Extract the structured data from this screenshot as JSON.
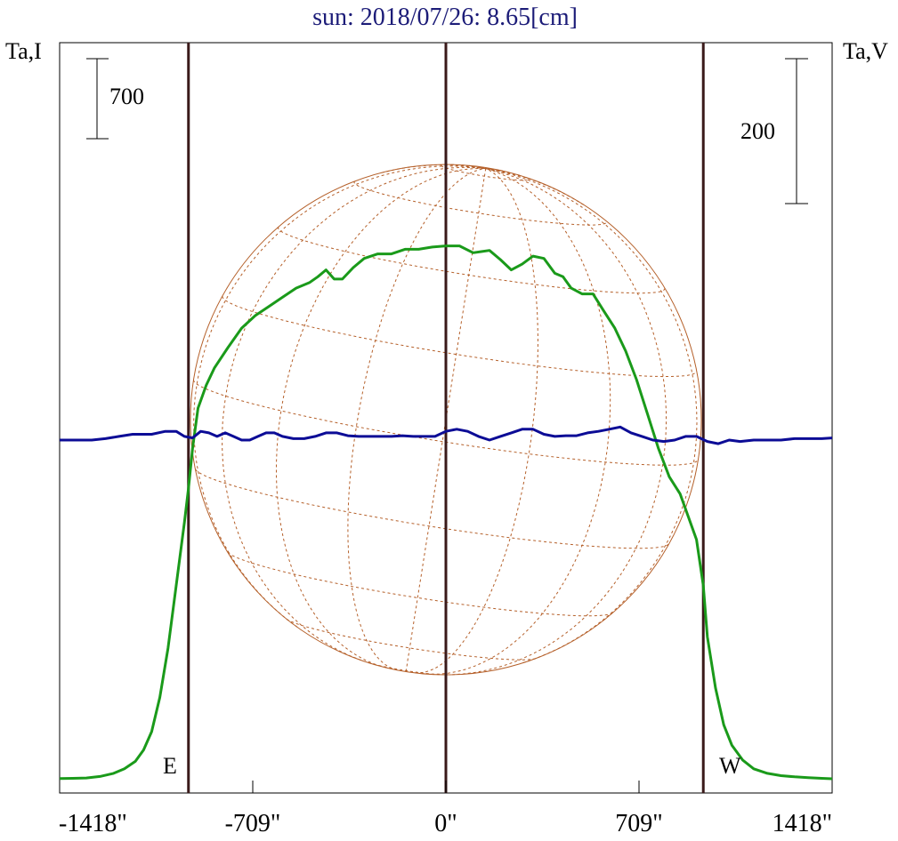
{
  "title": "sun: 2018/07/26: 8.65[cm]",
  "left_axis_label": "Ta,I",
  "right_axis_label": "Ta,V",
  "left_scale_label": "700",
  "right_scale_label": "200",
  "east_label": "E",
  "west_label": "W",
  "colors": {
    "title": "#1c1c78",
    "intensity": "#1a9a1a",
    "polarization": "#0c0c96",
    "limb_lines": "#3a1a1a",
    "disk": "#b5602a",
    "axes": "#000000"
  },
  "chart_data": {
    "type": "line",
    "title": "sun: 2018/07/26: 8.65[cm]",
    "xlabel": "",
    "x_unit": "arcsec",
    "xlim": [
      -1418,
      1418
    ],
    "x_ticks": [
      -1418,
      -709,
      0,
      709,
      1418
    ],
    "x_tick_labels": [
      "-1418\"",
      "-709\"",
      "0\"",
      "709\"",
      "1418\""
    ],
    "limb_markers": [
      -945,
      0,
      945
    ],
    "scale_bars": [
      {
        "axis": "Ta,I",
        "label": "700",
        "value": 700
      },
      {
        "axis": "Ta,V",
        "label": "200",
        "value": 200
      }
    ],
    "series": [
      {
        "name": "Ta,I",
        "axis": "left",
        "values_relative_to_bar": true,
        "x": [
          -1418,
          -1370,
          -1320,
          -1270,
          -1220,
          -1180,
          -1140,
          -1110,
          -1080,
          -1050,
          -1020,
          -990,
          -960,
          -945,
          -930,
          -910,
          -880,
          -850,
          -800,
          -750,
          -700,
          -650,
          -600,
          -550,
          -500,
          -470,
          -440,
          -410,
          -380,
          -340,
          -300,
          -250,
          -200,
          -150,
          -100,
          -50,
          0,
          50,
          100,
          130,
          160,
          200,
          240,
          280,
          320,
          360,
          400,
          430,
          460,
          500,
          540,
          580,
          620,
          660,
          700,
          740,
          780,
          820,
          860,
          890,
          920,
          945,
          960,
          990,
          1020,
          1050,
          1090,
          1130,
          1180,
          1230,
          1280,
          1330,
          1380,
          1418
        ],
        "values": [
          10,
          12,
          15,
          28,
          55,
          95,
          160,
          260,
          420,
          720,
          1150,
          1700,
          2250,
          2550,
          2900,
          3250,
          3450,
          3600,
          3780,
          3950,
          4060,
          4140,
          4220,
          4300,
          4350,
          4400,
          4460,
          4380,
          4380,
          4480,
          4560,
          4600,
          4600,
          4640,
          4640,
          4660,
          4670,
          4670,
          4610,
          4620,
          4630,
          4550,
          4460,
          4510,
          4580,
          4560,
          4430,
          4400,
          4300,
          4250,
          4250,
          4100,
          3950,
          3750,
          3500,
          3200,
          2900,
          2650,
          2500,
          2300,
          2100,
          1700,
          1250,
          800,
          480,
          300,
          170,
          95,
          55,
          35,
          25,
          18,
          12,
          8
        ]
      },
      {
        "name": "Ta,V",
        "axis": "right",
        "values_relative_to_bar": true,
        "x": [
          -1418,
          -1300,
          -1250,
          -1200,
          -1150,
          -1080,
          -1030,
          -990,
          -960,
          -930,
          -900,
          -870,
          -840,
          -810,
          -780,
          -750,
          -720,
          -690,
          -660,
          -630,
          -600,
          -560,
          -520,
          -480,
          -440,
          -400,
          -360,
          -320,
          -280,
          -240,
          -200,
          -160,
          -120,
          -80,
          -40,
          0,
          40,
          80,
          120,
          160,
          200,
          240,
          280,
          320,
          360,
          400,
          440,
          480,
          520,
          560,
          600,
          640,
          680,
          720,
          760,
          800,
          840,
          880,
          920,
          960,
          1000,
          1040,
          1080,
          1130,
          1180,
          1230,
          1280,
          1330,
          1380,
          1418
        ],
        "values": [
          0,
          0,
          2,
          5,
          8,
          8,
          12,
          12,
          5,
          3,
          12,
          10,
          5,
          10,
          5,
          0,
          0,
          5,
          10,
          10,
          5,
          2,
          2,
          5,
          10,
          10,
          6,
          5,
          5,
          5,
          5,
          6,
          5,
          5,
          5,
          12,
          15,
          12,
          5,
          0,
          5,
          10,
          15,
          15,
          8,
          5,
          6,
          6,
          10,
          12,
          15,
          18,
          10,
          5,
          0,
          -2,
          0,
          5,
          5,
          -2,
          -5,
          0,
          -2,
          0,
          0,
          0,
          2,
          2,
          2,
          3
        ]
      }
    ],
    "grid": false
  }
}
